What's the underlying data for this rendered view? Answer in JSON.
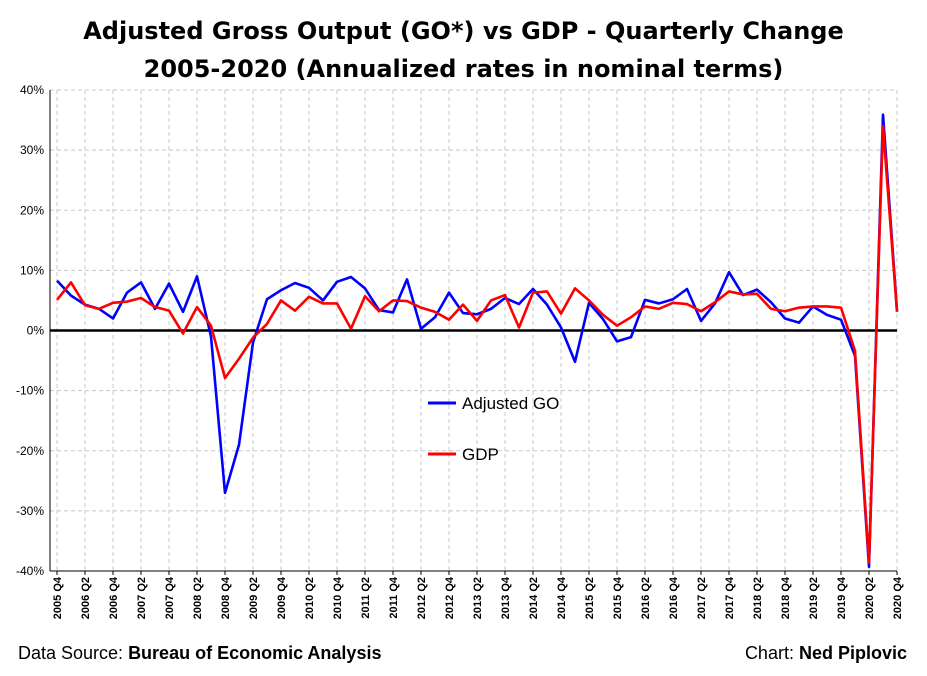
{
  "chart_data": {
    "type": "line",
    "title_line1": "Adjusted Gross Output (GO*) vs GDP - Quarterly Change",
    "title_line2": "2005-2020 (Annualized rates in nominal terms)",
    "ylim": [
      -40,
      40
    ],
    "y_ticks": [
      "-40%",
      "-30%",
      "-20%",
      "-10%",
      "0%",
      "10%",
      "20%",
      "30%",
      "40%"
    ],
    "y_tick_values": [
      -40,
      -30,
      -20,
      -10,
      0,
      10,
      20,
      30,
      40
    ],
    "grid": true,
    "legend_position": "center",
    "x": [
      "2005 Q4",
      "2006 Q1",
      "2006 Q2",
      "2006 Q3",
      "2006 Q4",
      "2007 Q1",
      "2007 Q2",
      "2007 Q3",
      "2007 Q4",
      "2008 Q1",
      "2008 Q2",
      "2008 Q3",
      "2008 Q4",
      "2009 Q1",
      "2009 Q2",
      "2009 Q3",
      "2009 Q4",
      "2010 Q1",
      "2010 Q2",
      "2010 Q3",
      "2010 Q4",
      "2011 Q1",
      "2011 Q2",
      "2011 Q3",
      "2011 Q4",
      "2012 Q1",
      "2012 Q2",
      "2012 Q3",
      "2012 Q4",
      "2013 Q1",
      "2013 Q2",
      "2013 Q3",
      "2013 Q4",
      "2014 Q1",
      "2014 Q2",
      "2014 Q3",
      "2014 Q4",
      "2015 Q1",
      "2015 Q2",
      "2015 Q3",
      "2015 Q4",
      "2016 Q1",
      "2016 Q2",
      "2016 Q3",
      "2016 Q4",
      "2017 Q1",
      "2017 Q2",
      "2017 Q3",
      "2017 Q4",
      "2018 Q1",
      "2018 Q2",
      "2018 Q3",
      "2018 Q4",
      "2019 Q1",
      "2019 Q2",
      "2019 Q3",
      "2019 Q4",
      "2020 Q1",
      "2020 Q2",
      "2020 Q3",
      "2020 Q4"
    ],
    "x_tick_labels": [
      "2005 Q4",
      "2006 Q2",
      "2006 Q4",
      "2007 Q2",
      "2007 Q4",
      "2008 Q2",
      "2008 Q4",
      "2009 Q2",
      "2009 Q4",
      "2010 Q2",
      "2010 Q4",
      "2011 Q2",
      "2011 Q4",
      "2012 Q2",
      "2012 Q4",
      "2013 Q2",
      "2013 Q4",
      "2014 Q2",
      "2014 Q4",
      "2015 Q2",
      "2015 Q4",
      "2016 Q2",
      "2016 Q4",
      "2017 Q2",
      "2017 Q4",
      "2018 Q2",
      "2018 Q4",
      "2019 Q2",
      "2019 Q4",
      "2020 Q2",
      "2020 Q4"
    ],
    "series": [
      {
        "name": "Adjusted GO",
        "color": "#0000ff",
        "values": [
          8.3,
          5.8,
          4.3,
          3.6,
          2.0,
          6.3,
          8.0,
          3.6,
          7.8,
          3.1,
          9.0,
          -1.0,
          -27.0,
          -19.0,
          -2.0,
          5.2,
          6.7,
          7.9,
          7.1,
          5.0,
          8.1,
          8.9,
          7.0,
          3.4,
          3.0,
          8.5,
          0.3,
          2.2,
          6.3,
          2.9,
          2.7,
          3.6,
          5.4,
          4.4,
          6.9,
          4.3,
          0.5,
          -5.2,
          4.6,
          1.9,
          -1.8,
          -1.1,
          5.1,
          4.5,
          5.2,
          6.9,
          1.6,
          4.5,
          9.7,
          5.9,
          6.8,
          4.7,
          2.0,
          1.3,
          4.0,
          2.6,
          1.8,
          -4.2,
          -39.3,
          35.9,
          3.3
        ]
      },
      {
        "name": "GDP",
        "color": "#ff0000",
        "values": [
          5.1,
          8.0,
          4.2,
          3.6,
          4.6,
          4.8,
          5.4,
          3.9,
          3.3,
          -0.5,
          3.9,
          0.8,
          -7.9,
          -4.7,
          -1.2,
          1.1,
          5.0,
          3.3,
          5.6,
          4.5,
          4.5,
          0.3,
          5.7,
          3.2,
          5.0,
          4.9,
          3.8,
          3.1,
          1.8,
          4.3,
          1.6,
          5.0,
          5.9,
          0.5,
          6.3,
          6.5,
          2.8,
          7.0,
          5.0,
          2.6,
          0.8,
          2.2,
          4.0,
          3.6,
          4.6,
          4.4,
          3.2,
          4.7,
          6.5,
          6.0,
          6.1,
          3.6,
          3.2,
          3.8,
          4.0,
          4.0,
          3.8,
          -3.4,
          -38.6,
          34.0,
          3.1
        ]
      }
    ],
    "source_label": "Data Source: ",
    "source_value": "Bureau of Economic Analysis",
    "credit_label": "Chart: ",
    "credit_value": "Ned Piplovic"
  }
}
